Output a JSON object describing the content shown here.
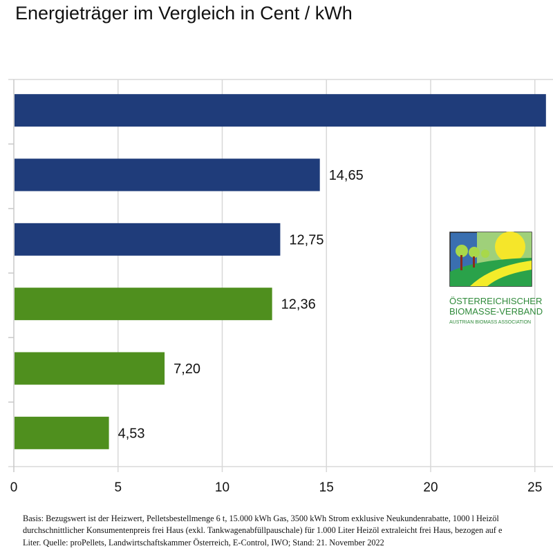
{
  "chart_data": {
    "type": "bar",
    "orientation": "horizontal",
    "title": "Energieträger im Vergleich in Cent / kWh",
    "values": [
      25.5,
      14.65,
      12.75,
      12.36,
      7.2,
      4.53
    ],
    "data_labels": [
      "",
      "14,65",
      "12,75",
      "12,36",
      "7,20",
      "4,53"
    ],
    "bar_colors": [
      "#1f3c7a",
      "#1f3c7a",
      "#1f3c7a",
      "#4f8f1e",
      "#4f8f1e",
      "#4f8f1e"
    ],
    "xlim": [
      0,
      26
    ],
    "x_ticks": [
      0,
      5,
      10,
      15,
      20,
      25
    ],
    "x_tick_labels": [
      "0",
      "5",
      "10",
      "15",
      "20",
      "25"
    ],
    "grid": "vertical",
    "legend": "none"
  },
  "footnote": {
    "lines": [
      "Basis: Bezugswert ist der Heizwert, Pelletsbestellmenge 6 t, 15.000 kWh Gas, 3500 kWh Strom exklusive Neukundenrabatte, 1000 l Heizöl",
      "durchschnittlicher Konsumentenpreis frei Haus (exkl. Tankwagenabfüllpauschale) für 1.000 Liter Heizöl extraleicht frei Haus, bezogen auf e",
      "Liter. Quelle: proPellets, Landwirtschaftskammer Österreich, E-Control, IWO; Stand: 21. November 2022"
    ]
  },
  "logo": {
    "line1": "ÖSTERREICHISCHER",
    "line2": "BIOMASSE-VERBAND",
    "line3": "AUSTRIAN BIOMASS ASSOCIATION"
  }
}
